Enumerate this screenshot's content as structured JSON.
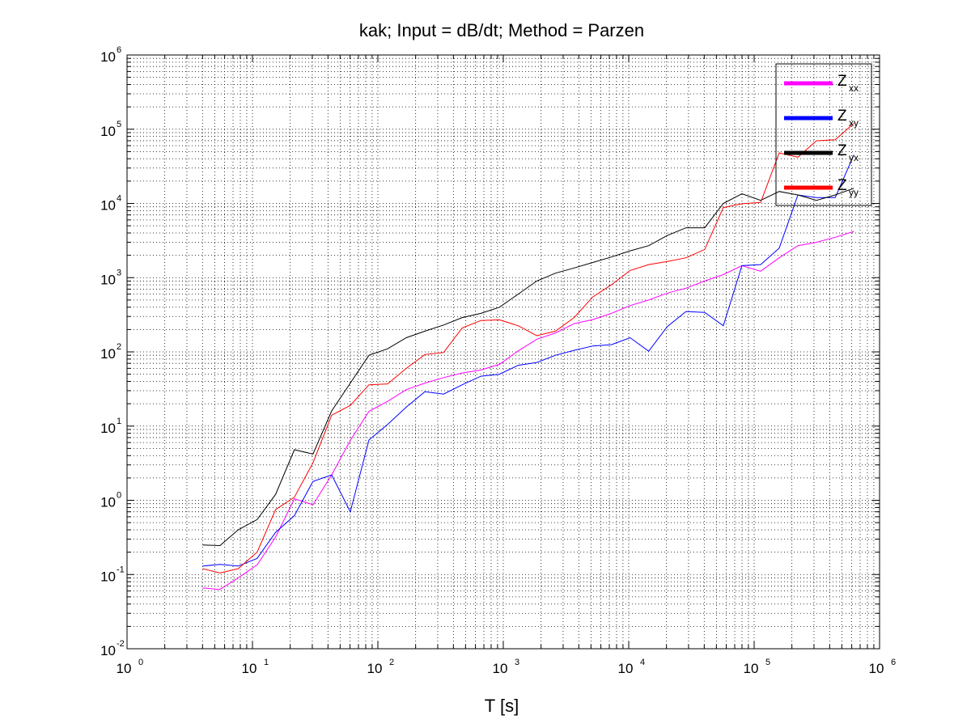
{
  "chart_data": {
    "type": "line",
    "title": "kak; Input = dB/dt; Method = Parzen",
    "xlabel": "T [s]",
    "ylabel": "",
    "xscale": "log",
    "yscale": "log",
    "xlim": [
      1,
      1000000
    ],
    "ylim": [
      0.01,
      1000000
    ],
    "grid": "on (major and minor, dotted)",
    "legend_position": "top-right",
    "x_tick_labels": [
      {
        "base": "10",
        "exp": "0"
      },
      {
        "base": "10",
        "exp": "1"
      },
      {
        "base": "10",
        "exp": "2"
      },
      {
        "base": "10",
        "exp": "3"
      },
      {
        "base": "10",
        "exp": "4"
      },
      {
        "base": "10",
        "exp": "5"
      },
      {
        "base": "10",
        "exp": "6"
      }
    ],
    "y_tick_labels": [
      {
        "base": "10",
        "exp": "-2"
      },
      {
        "base": "10",
        "exp": "-1"
      },
      {
        "base": "10",
        "exp": "0"
      },
      {
        "base": "10",
        "exp": "1"
      },
      {
        "base": "10",
        "exp": "2"
      },
      {
        "base": "10",
        "exp": "3"
      },
      {
        "base": "10",
        "exp": "4"
      },
      {
        "base": "10",
        "exp": "5"
      },
      {
        "base": "10",
        "exp": "6"
      }
    ],
    "x": [
      4,
      5.5,
      7.7,
      10.9,
      15.3,
      21.6,
      30.4,
      42.8,
      60.3,
      84.9,
      119.6,
      168.4,
      237.2,
      334,
      470.4,
      662.5,
      933,
      1314,
      1850,
      2606,
      3670,
      5168,
      7278,
      10250,
      14435,
      20329,
      28629,
      40318,
      56781,
      79965,
      112614,
      158592,
      223343,
      314531,
      442952,
      623810
    ],
    "series": [
      {
        "name_base": "Z",
        "name_sub": "xx",
        "color": "#ff00ff",
        "values": [
          0.066,
          0.063,
          0.09,
          0.135,
          0.32,
          1.05,
          0.87,
          2.2,
          6.4,
          15.8,
          21.5,
          31,
          38,
          45,
          52,
          57,
          68,
          103,
          148,
          180,
          240,
          272,
          330,
          420,
          500,
          620,
          720,
          900,
          1100,
          1450,
          1220,
          1850,
          2700,
          3000,
          3500,
          4200
        ]
      },
      {
        "name_base": "Z",
        "name_sub": "xy",
        "color": "#0000ff",
        "values": [
          0.13,
          0.137,
          0.13,
          0.165,
          0.37,
          0.62,
          1.8,
          2.2,
          0.7,
          6.5,
          10.5,
          18,
          29,
          27,
          36,
          47,
          50,
          66,
          72,
          90,
          105,
          120,
          125,
          155,
          102,
          220,
          350,
          340,
          225,
          1450,
          1500,
          2500,
          13000,
          12000,
          12000,
          45000
        ]
      },
      {
        "name_base": "Z",
        "name_sub": "yx",
        "color": "#000000",
        "values": [
          0.25,
          0.245,
          0.4,
          0.55,
          1.2,
          4.8,
          4.2,
          16,
          38,
          90,
          110,
          155,
          190,
          230,
          290,
          330,
          400,
          600,
          900,
          1150,
          1350,
          1600,
          1900,
          2300,
          2700,
          3700,
          4700,
          4700,
          10000,
          13500,
          11000,
          14500,
          13000,
          11000,
          13000,
          16000
        ]
      },
      {
        "name_base": "Z",
        "name_sub": "yy",
        "color": "#ff0000",
        "values": [
          0.12,
          0.105,
          0.12,
          0.2,
          0.75,
          1.1,
          3.2,
          14,
          19,
          36,
          37,
          60,
          92,
          98,
          210,
          265,
          270,
          225,
          165,
          190,
          290,
          550,
          800,
          1250,
          1500,
          1650,
          1850,
          2400,
          8800,
          9900,
          10300,
          48000,
          42000,
          70000,
          72000,
          120000
        ]
      }
    ]
  }
}
